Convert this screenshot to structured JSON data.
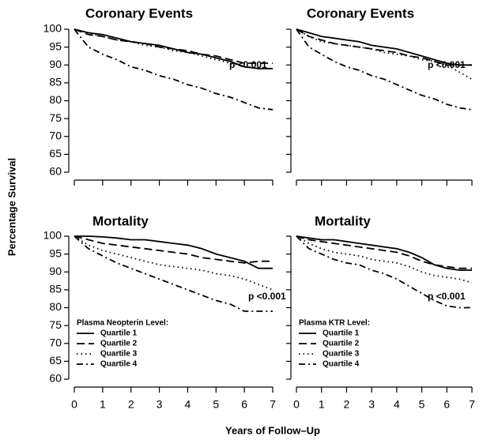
{
  "ylabel": "Percentage Survival",
  "xlabel": "Years of Follow–Up",
  "chart_data": [
    {
      "type": "line",
      "title": "Coronary Events",
      "annotation": "p <0.001",
      "x": [
        0,
        0.5,
        1,
        1.5,
        2,
        2.5,
        3,
        3.5,
        4,
        4.5,
        5,
        5.5,
        6,
        6.5,
        7
      ],
      "xlim": [
        0,
        7
      ],
      "xticks": [
        0,
        1,
        2,
        3,
        4,
        5,
        6,
        7
      ],
      "xtick_labels": false,
      "ylim": [
        60,
        100
      ],
      "yticks": [
        60,
        65,
        70,
        75,
        80,
        85,
        90,
        95,
        100
      ],
      "ytick_labels": true,
      "series": [
        {
          "color": "#000000",
          "style": "solid",
          "values": [
            100,
            99,
            98.5,
            97.5,
            96.5,
            96,
            95.5,
            94.5,
            93.5,
            93,
            92,
            91,
            89.5,
            89,
            89
          ]
        },
        {
          "color": "#000000",
          "style": "dashed",
          "values": [
            100,
            98.5,
            98,
            97,
            96.5,
            96,
            95,
            94.5,
            94,
            93,
            92.5,
            91.5,
            90.5,
            90.5,
            90.5
          ]
        },
        {
          "color": "#000000",
          "style": "dotted",
          "values": [
            100,
            99,
            98,
            97,
            96.5,
            95.5,
            95,
            94,
            93.5,
            92.5,
            91.5,
            90.5,
            89.5,
            89,
            89
          ]
        },
        {
          "color": "#000000",
          "style": "dashdot",
          "values": [
            100,
            95,
            93,
            91.5,
            89.5,
            88.5,
            87,
            86,
            84.5,
            83.5,
            82,
            81,
            79.5,
            78,
            77.5
          ]
        }
      ]
    },
    {
      "type": "line",
      "title": "Coronary Events",
      "annotation": "p <0.001",
      "x": [
        0,
        0.5,
        1,
        1.5,
        2,
        2.5,
        3,
        3.5,
        4,
        4.5,
        5,
        5.5,
        6,
        6.5,
        7
      ],
      "xlim": [
        0,
        7
      ],
      "xticks": [
        0,
        1,
        2,
        3,
        4,
        5,
        6,
        7
      ],
      "xtick_labels": false,
      "ylim": [
        60,
        100
      ],
      "yticks": [
        60,
        65,
        70,
        75,
        80,
        85,
        90,
        95,
        100
      ],
      "ytick_labels": false,
      "series": [
        {
          "color": "#000000",
          "style": "solid",
          "values": [
            100,
            99,
            98,
            97.5,
            97,
            96.5,
            95.5,
            95,
            94.5,
            93.5,
            92.5,
            91.5,
            90.5,
            90,
            90
          ]
        },
        {
          "color": "#000000",
          "style": "dashed",
          "values": [
            100,
            98,
            97,
            96,
            95.5,
            95,
            94.5,
            94,
            93.5,
            92.5,
            92,
            91,
            90,
            90,
            90
          ]
        },
        {
          "color": "#000000",
          "style": "dotted",
          "values": [
            100,
            98,
            96.5,
            96,
            95.5,
            95,
            94.5,
            93.5,
            93,
            92.5,
            91.5,
            91,
            90,
            88,
            86
          ]
        },
        {
          "color": "#000000",
          "style": "dashdot",
          "values": [
            100,
            95,
            93,
            91,
            89.5,
            88.5,
            87,
            86,
            84.5,
            83,
            81.5,
            80.5,
            79,
            78,
            77.5
          ]
        }
      ]
    },
    {
      "type": "line",
      "title": "Mortality",
      "annotation": "p <0.001",
      "legend_title": "Plasma Neopterin Level:",
      "legend": "lower left",
      "x": [
        0,
        0.5,
        1,
        1.5,
        2,
        2.5,
        3,
        3.5,
        4,
        4.5,
        5,
        5.5,
        6,
        6.5,
        7
      ],
      "xlim": [
        0,
        7
      ],
      "xticks": [
        0,
        1,
        2,
        3,
        4,
        5,
        6,
        7
      ],
      "xtick_labels": true,
      "ylim": [
        60,
        100
      ],
      "yticks": [
        60,
        65,
        70,
        75,
        80,
        85,
        90,
        95,
        100
      ],
      "ytick_labels": true,
      "series": [
        {
          "name": "Quartile 1",
          "color": "#000000",
          "style": "solid",
          "values": [
            100,
            100,
            99.8,
            99.5,
            99,
            99,
            98.5,
            98,
            97.5,
            96.5,
            95,
            94,
            93,
            91,
            91
          ]
        },
        {
          "name": "Quartile 2",
          "color": "#000000",
          "style": "dashed",
          "values": [
            100,
            99,
            98,
            97.5,
            97,
            96.5,
            96,
            95.5,
            95,
            94,
            93.5,
            93,
            92.5,
            93,
            93
          ]
        },
        {
          "name": "Quartile 3",
          "color": "#000000",
          "style": "dotted",
          "values": [
            100,
            97.5,
            96,
            95,
            94,
            93,
            92,
            91.5,
            91,
            90.5,
            89.5,
            89,
            88,
            86.5,
            85
          ]
        },
        {
          "name": "Quartile 4",
          "color": "#000000",
          "style": "dashdot",
          "values": [
            100,
            96.5,
            94.5,
            92.5,
            91,
            89.5,
            88,
            86.5,
            85,
            83.5,
            82,
            81,
            79,
            79,
            79
          ]
        }
      ]
    },
    {
      "type": "line",
      "title": "Mortality",
      "annotation": "p <0.001",
      "legend_title": "Plasma KTR Level:",
      "legend": "lower left",
      "x": [
        0,
        0.5,
        1,
        1.5,
        2,
        2.5,
        3,
        3.5,
        4,
        4.5,
        5,
        5.5,
        6,
        6.5,
        7
      ],
      "xlim": [
        0,
        7
      ],
      "xticks": [
        0,
        1,
        2,
        3,
        4,
        5,
        6,
        7
      ],
      "xtick_labels": true,
      "ylim": [
        60,
        100
      ],
      "yticks": [
        60,
        65,
        70,
        75,
        80,
        85,
        90,
        95,
        100
      ],
      "ytick_labels": false,
      "series": [
        {
          "name": "Quartile 1",
          "color": "#000000",
          "style": "solid",
          "values": [
            100,
            99.5,
            99,
            99,
            98.5,
            98,
            97.5,
            97,
            96.5,
            95.5,
            94,
            92,
            91,
            90.5,
            90.5
          ]
        },
        {
          "name": "Quartile 2",
          "color": "#000000",
          "style": "dashed",
          "values": [
            100,
            99,
            98.5,
            98,
            97.5,
            97,
            96.5,
            96,
            95.5,
            94.5,
            93,
            92,
            91.5,
            91,
            91
          ]
        },
        {
          "name": "Quartile 3",
          "color": "#000000",
          "style": "dotted",
          "values": [
            100,
            98,
            96.5,
            95.5,
            95,
            94.5,
            93.5,
            93,
            92.5,
            91.5,
            90,
            89,
            88.5,
            88,
            87
          ]
        },
        {
          "name": "Quartile 4",
          "color": "#000000",
          "style": "dashdot",
          "values": [
            100,
            96.5,
            95,
            93.5,
            92.5,
            92,
            90.5,
            89.5,
            88,
            86,
            84,
            82,
            80.5,
            80,
            80
          ]
        }
      ]
    }
  ]
}
